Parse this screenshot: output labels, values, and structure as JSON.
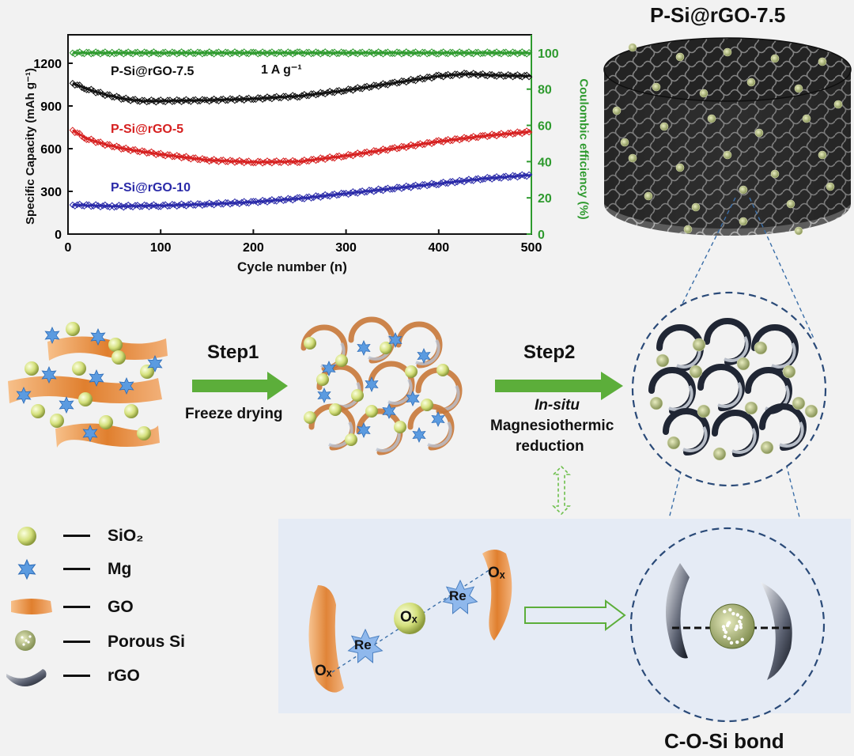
{
  "chart_data": {
    "type": "scatter",
    "xlabel": "Cycle number (n)",
    "ylabel": "Specific Capacity (mAh g⁻¹)",
    "y2label": "Coulombic efficiency (%)",
    "annotation": "1 A g⁻¹",
    "xlim": [
      0,
      500
    ],
    "ylim": [
      0,
      1400
    ],
    "y2lim": [
      0,
      110
    ],
    "x_ticks": [
      0,
      100,
      200,
      300,
      400,
      500
    ],
    "y_ticks": [
      0,
      300,
      600,
      900,
      1200
    ],
    "y2_ticks": [
      0,
      20,
      40,
      60,
      80,
      100
    ],
    "series": [
      {
        "name": "P-Si@rGO-7.5",
        "color": "#111111",
        "x": [
          5,
          20,
          40,
          60,
          80,
          100,
          150,
          200,
          250,
          300,
          350,
          400,
          430,
          460,
          500
        ],
        "y": [
          1060,
          1020,
          980,
          950,
          935,
          935,
          940,
          950,
          970,
          1010,
          1060,
          1110,
          1125,
          1115,
          1110
        ]
      },
      {
        "name": "P-Si@rGO-5",
        "color": "#d62020",
        "x": [
          5,
          20,
          40,
          60,
          80,
          100,
          150,
          200,
          250,
          300,
          350,
          400,
          450,
          500
        ],
        "y": [
          730,
          670,
          630,
          600,
          580,
          560,
          520,
          505,
          510,
          550,
          600,
          650,
          690,
          720
        ]
      },
      {
        "name": "P-Si@rGO-10",
        "color": "#2a2aa8",
        "x": [
          5,
          50,
          100,
          150,
          200,
          250,
          300,
          350,
          400,
          450,
          500
        ],
        "y": [
          205,
          195,
          200,
          210,
          225,
          250,
          285,
          320,
          355,
          390,
          415
        ]
      },
      {
        "name": "Coulombic efficiency",
        "color": "#2e9a2e",
        "axis": "right",
        "x": [
          5,
          50,
          100,
          150,
          200,
          250,
          300,
          350,
          400,
          450,
          500
        ],
        "y": [
          100,
          100,
          100,
          100,
          100,
          100,
          100,
          100,
          100,
          100,
          100
        ]
      }
    ]
  },
  "labels": {
    "cylinder_title": "P-Si@rGO-7.5",
    "step1": "Step1",
    "step1_desc": "Freeze drying",
    "step2": "Step2",
    "step2_insitu": "In-situ",
    "step2_desc1": "Magnesiothermic",
    "step2_desc2": "reduction",
    "bond": "C-O-Si bond",
    "ox": "Oₓ",
    "re": "Re"
  },
  "legend": [
    {
      "icon": "sio2-sphere-icon",
      "label": "SiO₂"
    },
    {
      "icon": "mg-star-icon",
      "label": "Mg"
    },
    {
      "icon": "go-sheet-icon",
      "label": "GO"
    },
    {
      "icon": "porous-si-icon",
      "label": "Porous Si"
    },
    {
      "icon": "rgo-sheet-icon",
      "label": "rGO"
    }
  ],
  "colors": {
    "go": "#e58a3c",
    "sio2": "#d9e58a",
    "mg": "#5b9be0",
    "arrow": "#5cae3a",
    "rgo": "#2a2f3a"
  }
}
